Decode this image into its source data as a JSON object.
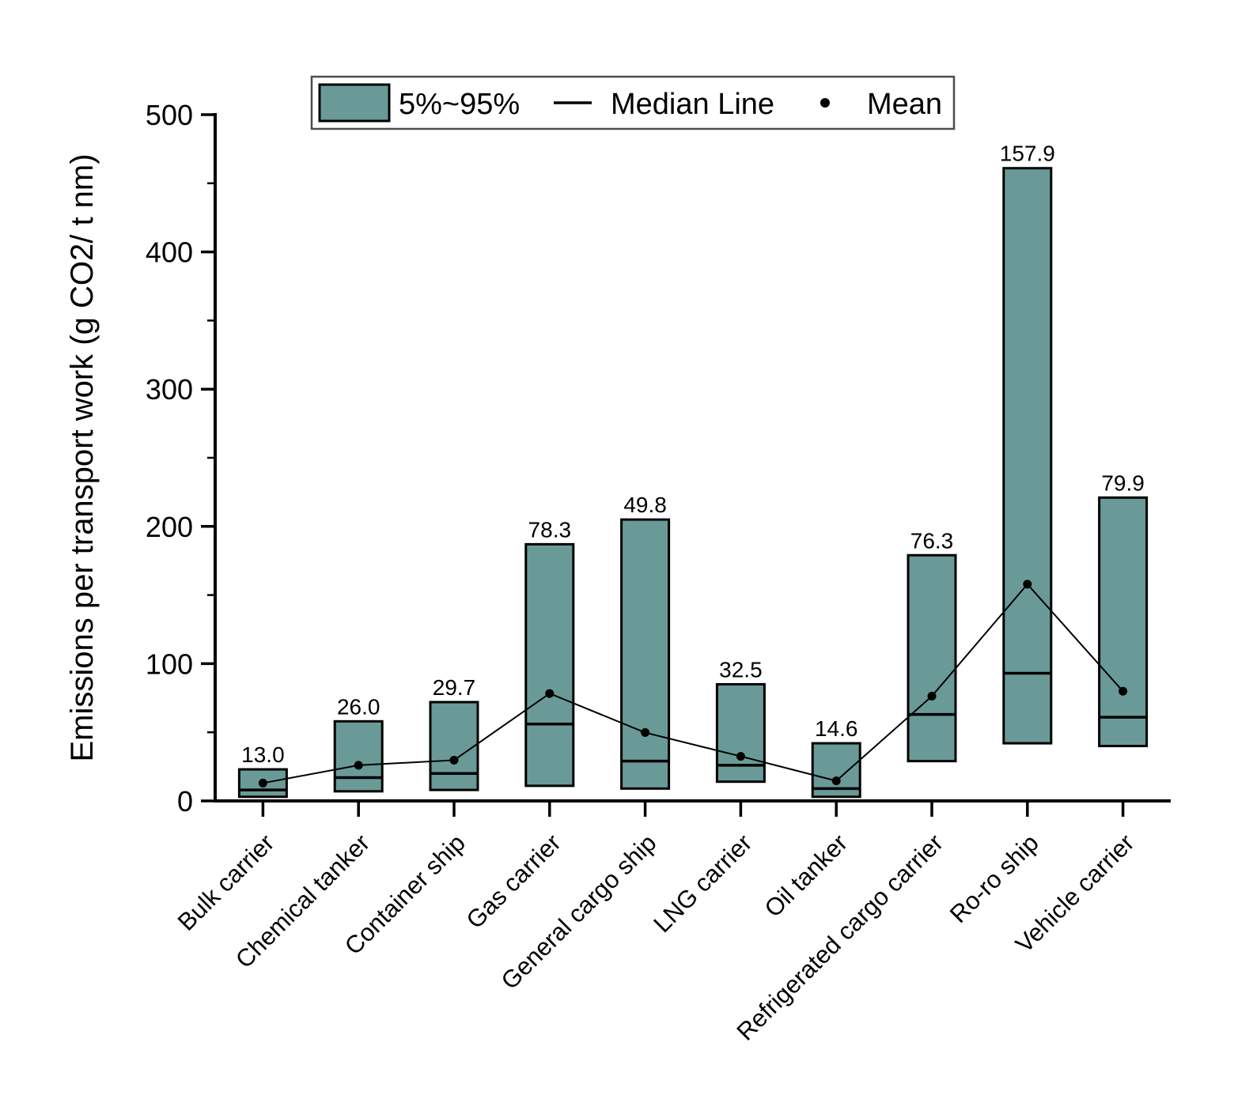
{
  "chart_data": {
    "type": "box",
    "title": "",
    "ylabel": "Emissions per transport work (g CO2/ t nm)",
    "xlabel": "",
    "ylim": [
      0,
      500
    ],
    "y_major_ticks": [
      0,
      100,
      200,
      300,
      400,
      500
    ],
    "y_minor_ticks": [
      50,
      150,
      250,
      350,
      450
    ],
    "grid": false,
    "legend": {
      "position": "top-center",
      "entries": [
        {
          "type": "box",
          "label": "5%~95%"
        },
        {
          "type": "line",
          "label": "Median Line"
        },
        {
          "type": "dot",
          "label": "Mean"
        }
      ]
    },
    "categories": [
      "Bulk carrier",
      "Chemical tanker",
      "Container ship",
      "Gas carrier",
      "General cargo ship",
      "LNG carrier",
      "Oil tanker",
      "Refrigerated cargo carrier",
      "Ro-ro ship",
      "Vehicle carrier"
    ],
    "series": [
      {
        "name": "Bulk carrier",
        "p5": 3,
        "median": 8,
        "p95": 23,
        "mean": 13.0,
        "mean_label": "13.0"
      },
      {
        "name": "Chemical tanker",
        "p5": 7,
        "median": 17,
        "p95": 58,
        "mean": 26.0,
        "mean_label": "26.0"
      },
      {
        "name": "Container ship",
        "p5": 8,
        "median": 20,
        "p95": 72,
        "mean": 29.7,
        "mean_label": "29.7"
      },
      {
        "name": "Gas carrier",
        "p5": 11,
        "median": 56,
        "p95": 187,
        "mean": 78.3,
        "mean_label": "78.3"
      },
      {
        "name": "General cargo ship",
        "p5": 9,
        "median": 29,
        "p95": 205,
        "mean": 49.8,
        "mean_label": "49.8"
      },
      {
        "name": "LNG carrier",
        "p5": 14,
        "median": 26,
        "p95": 85,
        "mean": 32.5,
        "mean_label": "32.5"
      },
      {
        "name": "Oil tanker",
        "p5": 3,
        "median": 9,
        "p95": 42,
        "mean": 14.6,
        "mean_label": "14.6"
      },
      {
        "name": "Refrigerated cargo carrier",
        "p5": 29,
        "median": 63,
        "p95": 179,
        "mean": 76.3,
        "mean_label": "76.3"
      },
      {
        "name": "Ro-ro ship",
        "p5": 42,
        "median": 93,
        "p95": 461,
        "mean": 157.9,
        "mean_label": "157.9"
      },
      {
        "name": "Vehicle carrier",
        "p5": 40,
        "median": 61,
        "p95": 221,
        "mean": 79.9,
        "mean_label": "79.9"
      }
    ],
    "colors": {
      "box_fill": "#6a9a97",
      "box_stroke": "#000000",
      "median_line": "#000000",
      "mean_line": "#000000",
      "mean_dot": "#000000",
      "axis": "#000000",
      "text": "#000000",
      "legend_border": "#4d4d4d",
      "background": "#ffffff"
    }
  }
}
